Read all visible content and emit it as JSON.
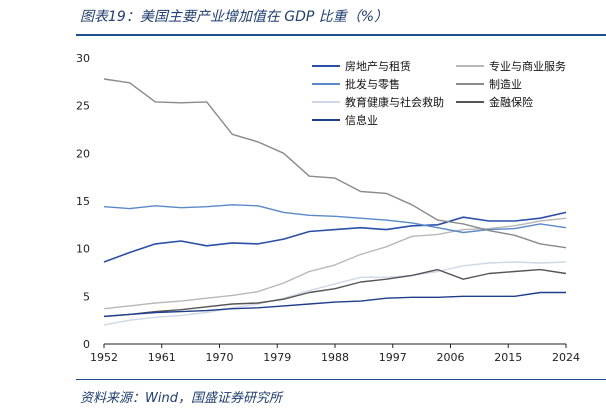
{
  "header": {
    "title": "图表19：美国主要产业增加值在 GDP 比重（%）"
  },
  "footer": {
    "source": "资料来源：Wind，国盛证券研究所"
  },
  "chart_data": {
    "type": "line",
    "title": "",
    "xlabel": "",
    "ylabel": "",
    "xlim": [
      1952,
      2024
    ],
    "ylim": [
      0,
      30
    ],
    "x_ticks": [
      1952,
      1961,
      1970,
      1979,
      1988,
      1997,
      2006,
      2015,
      2024
    ],
    "y_ticks": [
      0,
      5,
      10,
      15,
      20,
      25,
      30
    ],
    "grid": false,
    "legend_position": "top-right",
    "x": [
      1952,
      1956,
      1960,
      1964,
      1968,
      1972,
      1976,
      1980,
      1984,
      1988,
      1992,
      1996,
      2000,
      2004,
      2008,
      2012,
      2016,
      2020,
      2024
    ],
    "series": [
      {
        "name": "房地产与租赁",
        "color": "#2b4fa8",
        "width": 1.6,
        "values": [
          8.6,
          9.6,
          10.5,
          10.8,
          10.3,
          10.6,
          10.5,
          11.0,
          11.8,
          12.0,
          12.2,
          12.0,
          12.4,
          12.5,
          13.3,
          12.9,
          12.9,
          13.2,
          13.8
        ]
      },
      {
        "name": "专业与商业服务",
        "color": "#b8b8b8",
        "width": 1.4,
        "values": [
          3.7,
          4.0,
          4.3,
          4.5,
          4.8,
          5.1,
          5.5,
          6.4,
          7.6,
          8.3,
          9.4,
          10.2,
          11.3,
          11.5,
          12.0,
          12.1,
          12.4,
          12.9,
          13.2
        ]
      },
      {
        "name": "批发与零售",
        "color": "#5b88c8",
        "width": 1.4,
        "values": [
          14.4,
          14.2,
          14.5,
          14.3,
          14.4,
          14.6,
          14.5,
          13.8,
          13.5,
          13.4,
          13.2,
          13.0,
          12.7,
          12.2,
          11.7,
          12.0,
          12.1,
          12.6,
          12.2
        ]
      },
      {
        "name": "制造业",
        "color": "#8a8a8a",
        "width": 1.4,
        "values": [
          27.8,
          27.4,
          25.4,
          25.3,
          25.4,
          22.0,
          21.2,
          20.0,
          17.6,
          17.4,
          16.0,
          15.8,
          14.6,
          13.0,
          12.6,
          11.9,
          11.4,
          10.5,
          10.1
        ]
      },
      {
        "name": "教育健康与社会救助",
        "color": "#cfd8e6",
        "width": 1.4,
        "values": [
          2.0,
          2.5,
          2.8,
          3.0,
          3.3,
          3.8,
          4.2,
          4.8,
          5.6,
          6.3,
          7.0,
          7.0,
          7.2,
          7.6,
          8.2,
          8.5,
          8.6,
          8.5,
          8.6
        ]
      },
      {
        "name": "金融保险",
        "color": "#555555",
        "width": 1.4,
        "values": [
          2.9,
          3.1,
          3.4,
          3.6,
          3.9,
          4.2,
          4.3,
          4.7,
          5.4,
          5.8,
          6.5,
          6.8,
          7.2,
          7.8,
          6.8,
          7.4,
          7.6,
          7.8,
          7.4
        ]
      },
      {
        "name": "信息业",
        "color": "#1f3d8c",
        "width": 1.4,
        "values": [
          2.9,
          3.1,
          3.3,
          3.4,
          3.5,
          3.7,
          3.8,
          4.0,
          4.2,
          4.4,
          4.5,
          4.8,
          4.9,
          4.9,
          5.0,
          5.0,
          5.0,
          5.4,
          5.4
        ]
      }
    ]
  }
}
